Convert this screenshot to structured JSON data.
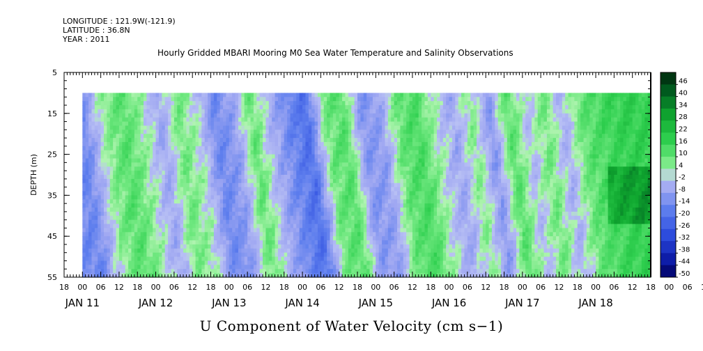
{
  "header": {
    "longitude": "LONGITUDE : 121.9W(-121.9)",
    "latitude": "LATITUDE : 36.8N",
    "year": "YEAR : 2011"
  },
  "chart_data": {
    "type": "heatmap",
    "title": "Hourly Gridded MBARI Mooring M0 Sea Water Temperature and Salinity Observations",
    "bottom_title": "U Component of Water Velocity (cm s−1)",
    "ylabel": "DEPTH (m)",
    "ylim": [
      55,
      5
    ],
    "y_ticks": [
      "5",
      "15",
      "25",
      "35",
      "45",
      "55"
    ],
    "x_axis": {
      "start": "JAN 10 18",
      "end": "JAN 18 18",
      "hour_tick_labels": [
        "18",
        "00",
        "06",
        "12",
        "18",
        "00",
        "06",
        "12",
        "18",
        "00",
        "06",
        "12",
        "18",
        "00",
        "06",
        "12",
        "18",
        "00",
        "06",
        "12",
        "18",
        "00",
        "06",
        "12",
        "18",
        "00",
        "06",
        "12",
        "18",
        "00",
        "06",
        "12",
        "18",
        "00",
        "06",
        "12",
        "18"
      ],
      "day_labels": [
        "JAN 11",
        "JAN 12",
        "JAN 13",
        "JAN 14",
        "JAN 15",
        "JAN 16",
        "JAN 17",
        "JAN 18"
      ]
    },
    "data_extent": {
      "depth_top": 10,
      "depth_bottom": 55,
      "time_start": "JAN 11 00",
      "time_end": "JAN 18 18"
    },
    "colorbar": {
      "levels": [
        "46",
        "40",
        "34",
        "28",
        "22",
        "16",
        "10",
        "4",
        "-2",
        "-8",
        "-14",
        "-20",
        "-26",
        "-32",
        "-38",
        "-44",
        "-50"
      ],
      "range": [
        -50,
        50
      ],
      "colors": {
        "deep_negative": "#000060",
        "negative": "#3050e0",
        "weak_negative": "#a8b0f0",
        "weak_positive": "#a8f0a8",
        "positive": "#30d050",
        "deep_positive": "#004010"
      }
    },
    "band_summary": {
      "description_free": true,
      "day_start_hours": [
        0,
        24,
        48,
        72,
        96,
        120,
        144,
        168
      ],
      "bands": [
        {
          "t": 0,
          "v": -12
        },
        {
          "t": 8,
          "v": -14
        },
        {
          "t": 16,
          "v": 6
        },
        {
          "t": 22,
          "v": 12
        },
        {
          "t": 28,
          "v": 4
        },
        {
          "t": 34,
          "v": -6
        },
        {
          "t": 40,
          "v": 8
        },
        {
          "t": 46,
          "v": 2
        },
        {
          "t": 52,
          "v": -14
        },
        {
          "t": 58,
          "v": -8
        },
        {
          "t": 64,
          "v": 10
        },
        {
          "t": 70,
          "v": -4
        },
        {
          "t": 76,
          "v": -14
        },
        {
          "t": 82,
          "v": -20
        },
        {
          "t": 88,
          "v": 8
        },
        {
          "t": 94,
          "v": 12
        },
        {
          "t": 100,
          "v": -10
        },
        {
          "t": 106,
          "v": -8
        },
        {
          "t": 112,
          "v": 10
        },
        {
          "t": 118,
          "v": 14
        },
        {
          "t": 124,
          "v": 2
        },
        {
          "t": 130,
          "v": -6
        },
        {
          "t": 136,
          "v": 6
        },
        {
          "t": 142,
          "v": -10
        },
        {
          "t": 148,
          "v": 12
        },
        {
          "t": 154,
          "v": -2
        },
        {
          "t": 160,
          "v": 8
        },
        {
          "t": 166,
          "v": -4
        },
        {
          "t": 172,
          "v": 10
        },
        {
          "t": 178,
          "v": 14
        },
        {
          "t": 186,
          "v": 18
        }
      ]
    }
  }
}
